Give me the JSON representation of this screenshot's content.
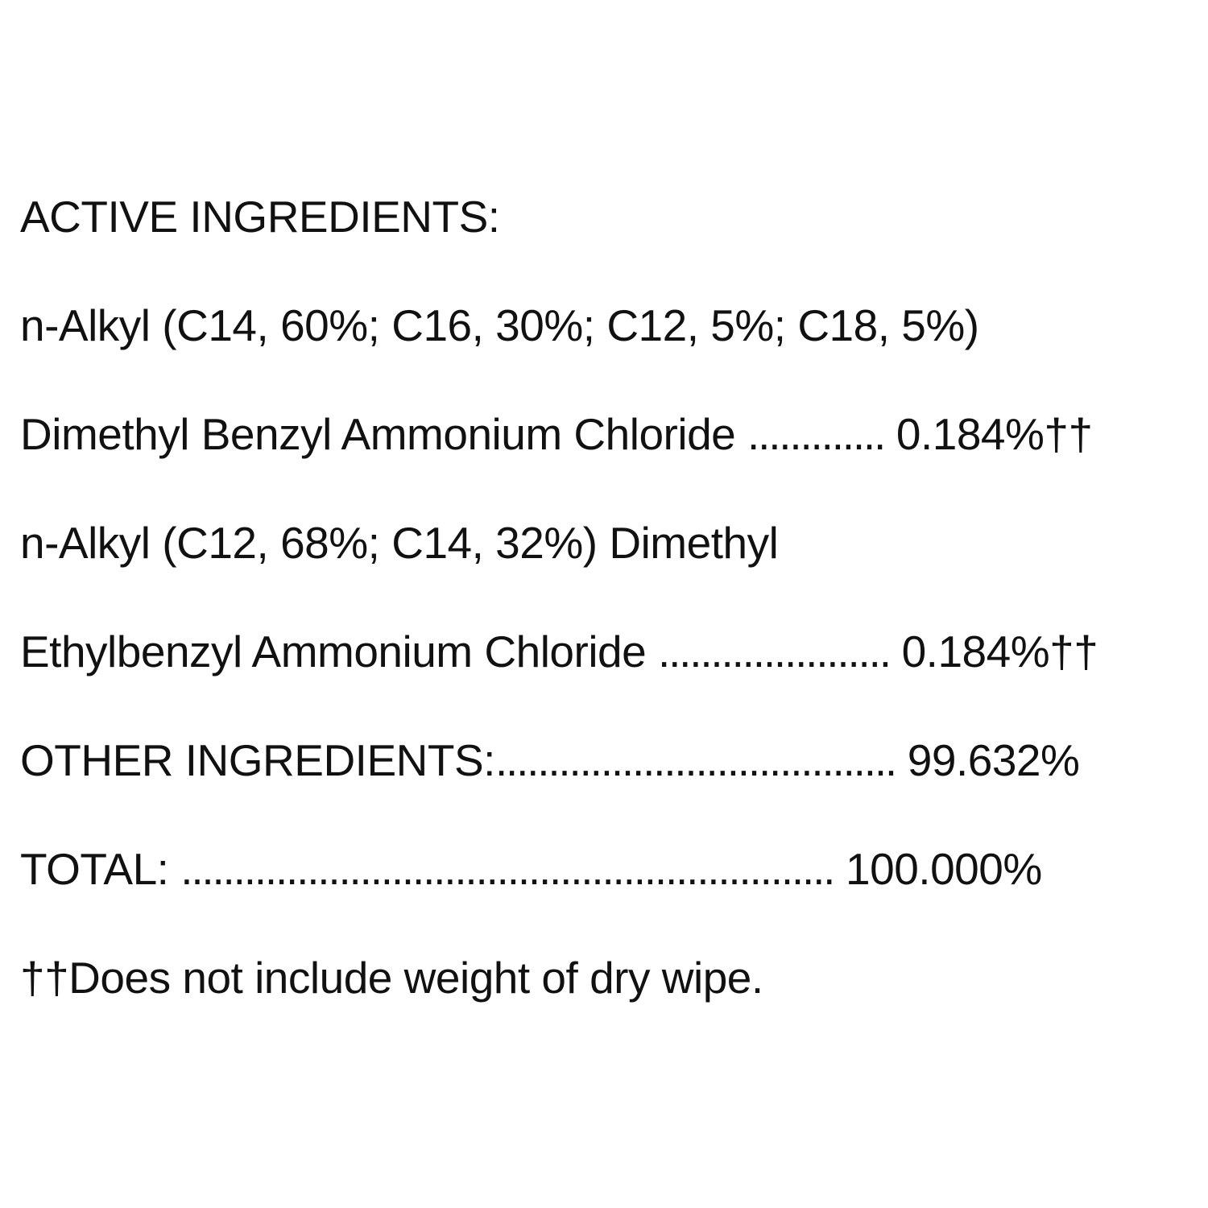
{
  "heading_active": "ACTIVE INGREDIENTS:",
  "ingredient1": {
    "line1": "n-Alkyl (C14, 60%; C16, 30%; C12, 5%; C18, 5%)",
    "line2_name": "Dimethyl Benzyl Ammonium Chloride ",
    "line2_dots": ".............",
    "line2_value": " 0.184%††"
  },
  "ingredient2": {
    "line1": "n-Alkyl (C12, 68%; C14, 32%) Dimethyl",
    "line2_name": "Ethylbenzyl Ammonium Chloride ",
    "line2_dots": "......................",
    "line2_value": " 0.184%††"
  },
  "other": {
    "label": "OTHER INGREDIENTS:",
    "dots": "......................................",
    "value": " 99.632%"
  },
  "total": {
    "label": "TOTAL: ",
    "dots": "..............................................................",
    "value": " 100.000%"
  },
  "footnote": "††Does not include weight of dry wipe."
}
